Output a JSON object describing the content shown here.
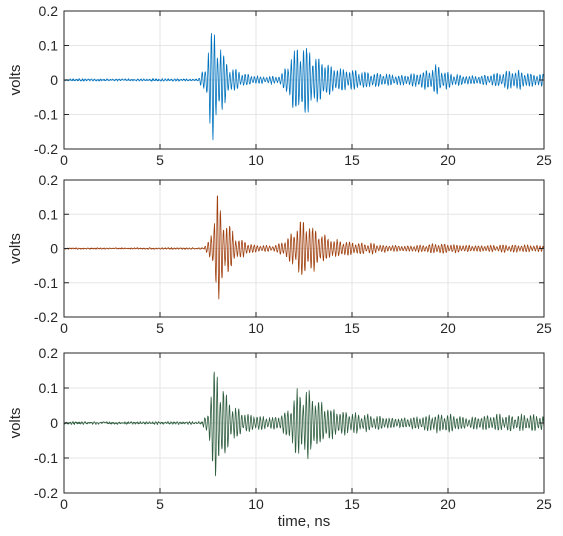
{
  "chart_data": [
    {
      "type": "line",
      "title": "",
      "xlabel": "",
      "ylabel": "volts",
      "xlim": [
        0,
        25
      ],
      "ylim": [
        -0.2,
        0.2
      ],
      "xticks": [
        0,
        5,
        10,
        15,
        20,
        25
      ],
      "yticks": [
        0.2,
        0.1,
        0,
        -0.1,
        -0.2
      ],
      "ytick_labels": [
        "0.2",
        "0.1",
        "0",
        "-0.1",
        "-0.2"
      ],
      "grid": true,
      "series": [
        {
          "color": "#0072bd",
          "noise_amplitude": 0.002,
          "oscillation_period_ns": 0.16,
          "envelope": [
            [
              0,
              0.002
            ],
            [
              7.0,
              0.003
            ],
            [
              7.4,
              0.05
            ],
            [
              7.75,
              0.19
            ],
            [
              8.0,
              0.12
            ],
            [
              8.6,
              0.04
            ],
            [
              9.5,
              0.02
            ],
            [
              10.5,
              0.012
            ],
            [
              11.3,
              0.015
            ],
            [
              11.8,
              0.07
            ],
            [
              12.3,
              0.11
            ],
            [
              13.0,
              0.09
            ],
            [
              14.0,
              0.05
            ],
            [
              15.0,
              0.03
            ],
            [
              16.0,
              0.022
            ],
            [
              17.5,
              0.018
            ],
            [
              18.5,
              0.025
            ],
            [
              19.4,
              0.04
            ],
            [
              20.2,
              0.02
            ],
            [
              21.5,
              0.015
            ],
            [
              22.5,
              0.02
            ],
            [
              23.5,
              0.03
            ],
            [
              24.5,
              0.022
            ],
            [
              25,
              0.025
            ]
          ]
        }
      ]
    },
    {
      "type": "line",
      "title": "",
      "xlabel": "",
      "ylabel": "volts",
      "xlim": [
        0,
        25
      ],
      "ylim": [
        -0.2,
        0.2
      ],
      "xticks": [
        0,
        5,
        10,
        15,
        20,
        25
      ],
      "yticks": [
        0.2,
        0.1,
        0,
        -0.1,
        -0.2
      ],
      "ytick_labels": [
        "0.2",
        "0.1",
        "0",
        "-0.1",
        "-0.2"
      ],
      "grid": true,
      "series": [
        {
          "color": "#a0400f",
          "noise_amplitude": 0.0015,
          "oscillation_period_ns": 0.16,
          "envelope": [
            [
              0,
              0.001
            ],
            [
              7.3,
              0.002
            ],
            [
              7.6,
              0.03
            ],
            [
              8.0,
              0.16
            ],
            [
              8.3,
              0.1
            ],
            [
              8.9,
              0.04
            ],
            [
              9.8,
              0.015
            ],
            [
              11.0,
              0.01
            ],
            [
              11.8,
              0.04
            ],
            [
              12.4,
              0.09
            ],
            [
              13.0,
              0.07
            ],
            [
              14.0,
              0.035
            ],
            [
              15.0,
              0.02
            ],
            [
              16.5,
              0.012
            ],
            [
              18.0,
              0.01
            ],
            [
              19.5,
              0.015
            ],
            [
              21.0,
              0.012
            ],
            [
              22.5,
              0.01
            ],
            [
              24.0,
              0.012
            ],
            [
              25,
              0.01
            ]
          ]
        }
      ]
    },
    {
      "type": "line",
      "title": "",
      "xlabel": "time, ns",
      "ylabel": "volts",
      "xlim": [
        0,
        25
      ],
      "ylim": [
        -0.2,
        0.2
      ],
      "xticks": [
        0,
        5,
        10,
        15,
        20,
        25
      ],
      "yticks": [
        0.2,
        0.1,
        0,
        -0.1,
        -0.2
      ],
      "ytick_labels": [
        "0.2",
        "0.1",
        "0",
        "-0.1",
        "-0.2"
      ],
      "grid": true,
      "series": [
        {
          "color": "#2f5e3f",
          "noise_amplitude": 0.0025,
          "oscillation_period_ns": 0.16,
          "envelope": [
            [
              0,
              0.002
            ],
            [
              7.2,
              0.003
            ],
            [
              7.5,
              0.04
            ],
            [
              7.9,
              0.18
            ],
            [
              8.2,
              0.12
            ],
            [
              8.8,
              0.05
            ],
            [
              9.6,
              0.03
            ],
            [
              10.8,
              0.02
            ],
            [
              11.5,
              0.03
            ],
            [
              12.0,
              0.08
            ],
            [
              12.6,
              0.11
            ],
            [
              13.3,
              0.08
            ],
            [
              14.3,
              0.045
            ],
            [
              15.5,
              0.025
            ],
            [
              17.0,
              0.018
            ],
            [
              18.5,
              0.02
            ],
            [
              20.0,
              0.03
            ],
            [
              21.0,
              0.02
            ],
            [
              22.0,
              0.025
            ],
            [
              23.5,
              0.022
            ],
            [
              24.5,
              0.03
            ],
            [
              25,
              0.025
            ]
          ]
        }
      ]
    }
  ]
}
